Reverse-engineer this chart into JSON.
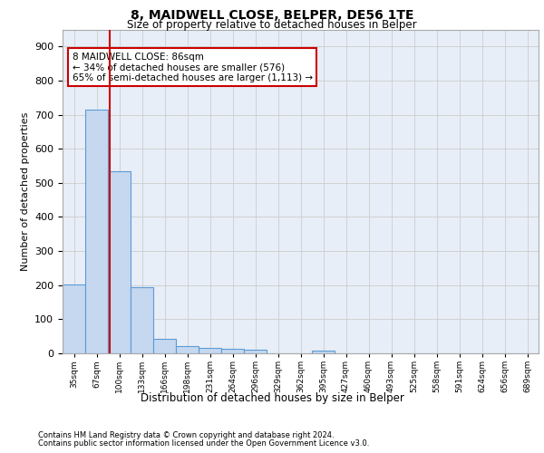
{
  "title_line1": "8, MAIDWELL CLOSE, BELPER, DE56 1TE",
  "title_line2": "Size of property relative to detached houses in Belper",
  "xlabel": "Distribution of detached houses by size in Belper",
  "ylabel": "Number of detached properties",
  "footnote1": "Contains HM Land Registry data © Crown copyright and database right 2024.",
  "footnote2": "Contains public sector information licensed under the Open Government Licence v3.0.",
  "annotation_line1": "8 MAIDWELL CLOSE: 86sqm",
  "annotation_line2": "← 34% of detached houses are smaller (576)",
  "annotation_line3": "65% of semi-detached houses are larger (1,113) →",
  "bar_labels": [
    "35sqm",
    "67sqm",
    "100sqm",
    "133sqm",
    "166sqm",
    "198sqm",
    "231sqm",
    "264sqm",
    "296sqm",
    "329sqm",
    "362sqm",
    "395sqm",
    "427sqm",
    "460sqm",
    "493sqm",
    "525sqm",
    "558sqm",
    "591sqm",
    "624sqm",
    "656sqm",
    "689sqm"
  ],
  "bar_values": [
    202,
    714,
    534,
    193,
    42,
    20,
    15,
    13,
    10,
    0,
    0,
    8,
    0,
    0,
    0,
    0,
    0,
    0,
    0,
    0,
    0
  ],
  "bar_color": "#c5d8f0",
  "bar_edge_color": "#5b9bd5",
  "bar_edge_width": 0.8,
  "grid_color": "#cccccc",
  "bg_color": "#e8eef7",
  "reference_line_color": "#cc0000",
  "annotation_box_color": "#cc0000",
  "ylim": [
    0,
    950
  ],
  "yticks": [
    0,
    100,
    200,
    300,
    400,
    500,
    600,
    700,
    800,
    900
  ]
}
